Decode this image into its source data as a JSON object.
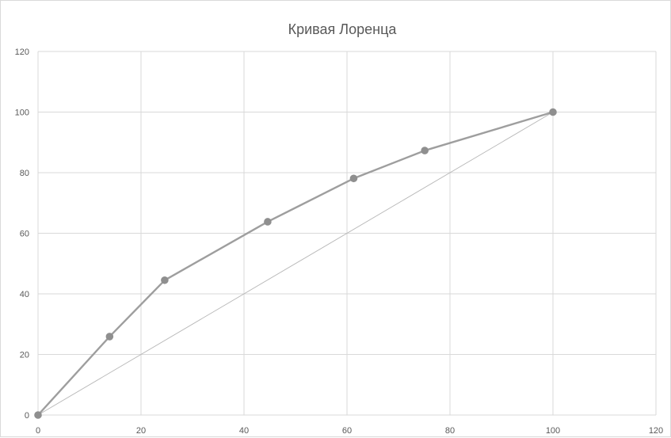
{
  "chart_data": {
    "type": "scatter",
    "title": "Кривая Лоренца",
    "xlabel": "",
    "ylabel": "",
    "xlim": [
      0,
      120
    ],
    "ylim": [
      0,
      120
    ],
    "x_ticks": [
      0,
      20,
      40,
      60,
      80,
      100,
      120
    ],
    "y_ticks": [
      0,
      20,
      40,
      60,
      80,
      100,
      120
    ],
    "grid": true,
    "legend": "none",
    "series": [
      {
        "mode": "lines+markers",
        "color": "#9e9e9e",
        "marker_color": "#8f8f8f",
        "points": [
          {
            "x": 0,
            "y": 0
          },
          {
            "x": 13.9,
            "y": 25.9
          },
          {
            "x": 24.6,
            "y": 44.5
          },
          {
            "x": 44.6,
            "y": 63.8
          },
          {
            "x": 61.3,
            "y": 78.1
          },
          {
            "x": 75.1,
            "y": 87.3
          },
          {
            "x": 100,
            "y": 100
          }
        ]
      },
      {
        "mode": "line",
        "color": "#b8b8b8",
        "points": [
          {
            "x": 0,
            "y": 0
          },
          {
            "x": 100,
            "y": 100
          }
        ]
      }
    ]
  }
}
